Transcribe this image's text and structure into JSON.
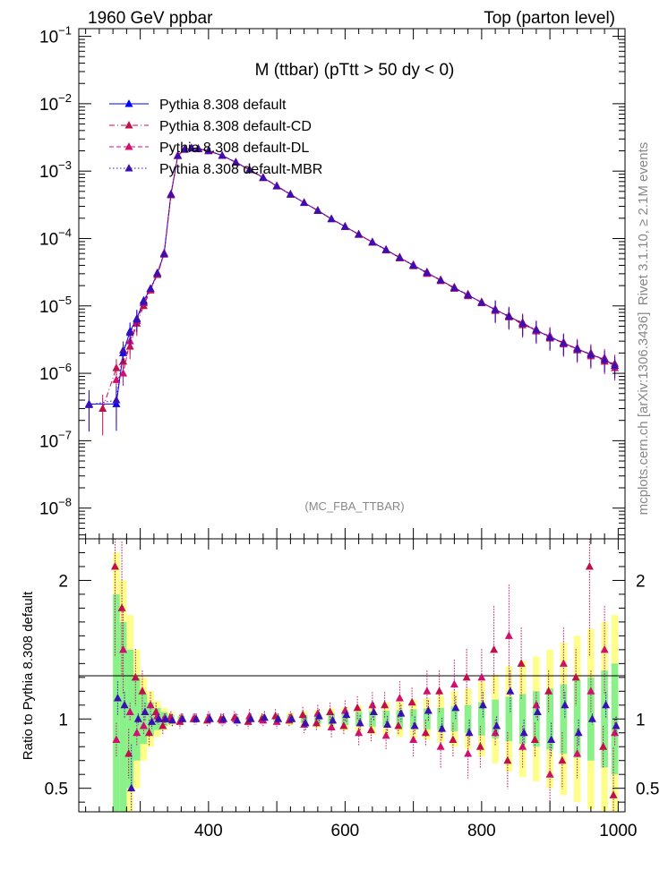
{
  "header": {
    "left": "1960 GeV ppbar",
    "right": "Top (parton level)"
  },
  "side": {
    "right_top": "Rivet 3.1.10, ≥ 2.1M events",
    "right_bottom": "mcplots.cern.ch [arXiv:1306.3436]"
  },
  "chart_data": {
    "type": "scatter",
    "title": "M (ttbar) (pTtt > 50 dy < 0)",
    "analysis_tag": "(MC_FBA_TTBAR)",
    "xlabel": "",
    "ylabel_ratio": "Ratio to Pythia 8.308 default",
    "xlim": [
      210,
      1010
    ],
    "ylim_main": [
      3.5e-09,
      0.13
    ],
    "y_scale_main": "log",
    "ylim_ratio": [
      0.33,
      2.3
    ],
    "x_ticks": [
      "400",
      "600",
      "800",
      "1000"
    ],
    "y_ticks_main": [
      "10^-8",
      "10^-7",
      "10^-6",
      "10^-5",
      "10^-4",
      "10^-3",
      "10^-2",
      "10^-1"
    ],
    "y_ticks_ratio": [
      "0.5",
      "1",
      "2"
    ],
    "legend_position": "top-left",
    "series": [
      {
        "name": "Pythia 8.308 default",
        "color": "#0000ff",
        "style": "solid",
        "x": [
          225,
          265,
          275,
          285,
          295,
          305,
          315,
          325,
          335,
          345,
          355,
          365,
          375,
          385,
          400,
          420,
          440,
          460,
          480,
          500,
          520,
          540,
          560,
          580,
          600,
          620,
          640,
          660,
          680,
          700,
          720,
          740,
          760,
          780,
          800,
          820,
          840,
          860,
          880,
          900,
          920,
          940,
          960,
          980,
          995
        ],
        "y": [
          3.5e-07,
          3.5e-07,
          2e-06,
          4.2e-06,
          6.5e-06,
          1.2e-05,
          1.8e-05,
          3e-05,
          6e-05,
          0.00045,
          0.0017,
          0.0021,
          0.0022,
          0.00215,
          0.002,
          0.0017,
          0.00135,
          0.00105,
          0.0008,
          0.0006,
          0.00045,
          0.00034,
          0.00026,
          0.000195,
          0.00015,
          0.000115,
          8.8e-05,
          6.8e-05,
          5.2e-05,
          4e-05,
          3.1e-05,
          2.4e-05,
          1.85e-05,
          1.45e-05,
          1.12e-05,
          8.8e-06,
          7e-06,
          5.5e-06,
          4.3e-06,
          3.5e-06,
          2.8e-06,
          2.3e-06,
          1.9e-06,
          1.6e-06,
          1.3e-06
        ]
      },
      {
        "name": "Pythia 8.308 default-CD",
        "color": "#c0104a",
        "style": "dashdot",
        "x": [
          245,
          265,
          275,
          285,
          295,
          305,
          315,
          325,
          335,
          345,
          355,
          365,
          375,
          385,
          400,
          420,
          440,
          460,
          480,
          500,
          520,
          540,
          560,
          580,
          600,
          620,
          640,
          660,
          680,
          700,
          720,
          740,
          760,
          780,
          800,
          820,
          840,
          860,
          880,
          900,
          920,
          940,
          960,
          980,
          995
        ],
        "y": [
          3e-07,
          1.2e-06,
          1.5e-06,
          2.5e-06,
          5.5e-06,
          1e-05,
          1.7e-05,
          2.9e-05,
          5.8e-05,
          0.00044,
          0.00168,
          0.00208,
          0.00218,
          0.00212,
          0.00198,
          0.00169,
          0.00134,
          0.00104,
          0.00079,
          0.000595,
          0.00045,
          0.000338,
          0.000258,
          0.000194,
          0.000149,
          0.000116,
          8.7e-05,
          6.7e-05,
          5.3e-05,
          3.9e-05,
          3.2e-05,
          2.35e-05,
          1.9e-05,
          1.4e-05,
          1.15e-05,
          8.5e-06,
          7.2e-06,
          5.2e-06,
          4.5e-06,
          3.3e-06,
          2.9e-06,
          2.2e-06,
          2e-06,
          1.5e-06,
          1.4e-06
        ]
      },
      {
        "name": "Pythia 8.308 default-DL",
        "color": "#d01070",
        "style": "dashed",
        "x": [
          265,
          275,
          285,
          295,
          305,
          315,
          325,
          335,
          345,
          355,
          365,
          375,
          385,
          400,
          420,
          440,
          460,
          480,
          500,
          520,
          540,
          560,
          580,
          600,
          620,
          640,
          660,
          680,
          700,
          720,
          740,
          760,
          780,
          800,
          820,
          840,
          860,
          880,
          900,
          920,
          940,
          960,
          980,
          995
        ],
        "y": [
          8e-07,
          1e-06,
          3e-06,
          6e-06,
          1.1e-05,
          1.75e-05,
          3.1e-05,
          6.1e-05,
          0.00046,
          0.00172,
          0.00212,
          0.00221,
          0.00216,
          0.00202,
          0.00171,
          0.00136,
          0.00106,
          0.00081,
          0.000605,
          0.000455,
          0.000342,
          0.000262,
          0.000196,
          0.000152,
          0.000114,
          8.9e-05,
          6.9e-05,
          5.1e-05,
          4.1e-05,
          3e-05,
          2.45e-05,
          1.8e-05,
          1.5e-05,
          1.1e-05,
          9e-06,
          6.8e-06,
          5.7e-06,
          4.2e-06,
          3.6e-06,
          2.7e-06,
          2.4e-06,
          1.8e-06,
          1.7e-06,
          1.2e-06
        ]
      },
      {
        "name": "Pythia 8.308 default-MBR",
        "color": "#3a10b0",
        "style": "dotted",
        "x": [
          225,
          265,
          275,
          285,
          295,
          305,
          315,
          325,
          335,
          345,
          355,
          365,
          375,
          385,
          400,
          420,
          440,
          460,
          480,
          500,
          520,
          540,
          560,
          580,
          600,
          620,
          640,
          660,
          680,
          700,
          720,
          740,
          760,
          780,
          800,
          820,
          840,
          860,
          880,
          900,
          920,
          940,
          960,
          980,
          995
        ],
        "y": [
          3.4e-07,
          4e-07,
          2.2e-06,
          4e-06,
          6.3e-06,
          1.15e-05,
          1.8e-05,
          3.05e-05,
          5.9e-05,
          0.00045,
          0.00169,
          0.0021,
          0.00219,
          0.00214,
          0.00201,
          0.0017,
          0.00135,
          0.00105,
          0.0008,
          0.0006,
          0.000452,
          0.00034,
          0.00026,
          0.000195,
          0.00015,
          0.000115,
          8.8e-05,
          6.8e-05,
          5.2e-05,
          4e-05,
          3.1e-05,
          2.4e-05,
          1.85e-05,
          1.45e-05,
          1.12e-05,
          8.8e-06,
          7e-06,
          5.5e-06,
          4.4e-06,
          3.4e-06,
          2.8e-06,
          2.3e-06,
          1.9e-06,
          1.6e-06,
          1.3e-06
        ]
      }
    ],
    "ratio_series": [
      {
        "name": "Pythia 8.308 default-CD",
        "color": "#c0104a",
        "x": [
          265,
          275,
          285,
          295,
          305,
          315,
          325,
          335,
          345,
          360,
          380,
          400,
          420,
          440,
          460,
          480,
          500,
          520,
          540,
          560,
          580,
          600,
          620,
          640,
          660,
          680,
          700,
          720,
          740,
          760,
          780,
          800,
          820,
          840,
          860,
          880,
          900,
          920,
          940,
          960,
          980,
          995
        ],
        "y": [
          2.1,
          1.8,
          0.75,
          1.3,
          1.2,
          0.9,
          1.05,
          0.95,
          1.0,
          0.98,
          1.0,
          0.99,
          1.0,
          1.01,
          0.98,
          1.0,
          1.02,
          0.99,
          1.03,
          0.97,
          1.05,
          0.95,
          1.08,
          0.92,
          1.1,
          0.95,
          1.12,
          0.9,
          1.2,
          0.85,
          1.3,
          0.8,
          1.5,
          0.7,
          1.4,
          0.85,
          1.2,
          0.7,
          1.3,
          2.1,
          0.8,
          0.45
        ]
      },
      {
        "name": "Pythia 8.308 default-DL",
        "color": "#d01070",
        "x": [
          265,
          275,
          285,
          295,
          305,
          315,
          325,
          335,
          345,
          360,
          380,
          400,
          420,
          440,
          460,
          480,
          500,
          520,
          540,
          560,
          580,
          600,
          620,
          640,
          660,
          680,
          700,
          720,
          740,
          760,
          780,
          800,
          820,
          840,
          860,
          880,
          900,
          920,
          940,
          960,
          980,
          995
        ],
        "y": [
          0.85,
          1.5,
          1.05,
          0.9,
          0.95,
          1.1,
          1.02,
          1.0,
          1.01,
          1.0,
          1.0,
          1.01,
          0.99,
          1.0,
          1.02,
          0.99,
          0.98,
          1.01,
          0.96,
          1.04,
          0.94,
          1.06,
          0.9,
          1.1,
          0.88,
          1.15,
          0.85,
          1.2,
          0.8,
          1.25,
          0.75,
          1.3,
          0.9,
          1.6,
          0.8,
          1.1,
          0.6,
          1.4,
          0.75,
          1.2,
          1.5,
          0.9
        ]
      },
      {
        "name": "Pythia 8.308 default-MBR",
        "color": "#3a10b0",
        "x": [
          265,
          275,
          285,
          295,
          305,
          315,
          325,
          335,
          345,
          360,
          380,
          400,
          420,
          440,
          460,
          480,
          500,
          520,
          540,
          560,
          580,
          600,
          620,
          640,
          660,
          680,
          700,
          720,
          740,
          760,
          780,
          800,
          820,
          840,
          860,
          880,
          900,
          920,
          940,
          960,
          980,
          995
        ],
        "y": [
          1.15,
          1.1,
          0.5,
          1.0,
          1.05,
          0.98,
          1.0,
          1.0,
          0.99,
          1.0,
          1.0,
          1.0,
          1.0,
          0.99,
          1.0,
          1.01,
          1.0,
          1.0,
          0.97,
          1.02,
          0.99,
          1.03,
          0.97,
          1.05,
          0.96,
          1.04,
          0.95,
          1.06,
          0.93,
          1.08,
          0.9,
          1.1,
          0.95,
          1.2,
          0.9,
          1.05,
          0.85,
          1.1,
          0.9,
          1.0,
          1.1,
          0.95
        ]
      }
    ],
    "bands": {
      "x": [
        265,
        275,
        285,
        295,
        305,
        315,
        325,
        335,
        345,
        360,
        380,
        400,
        420,
        440,
        460,
        480,
        500,
        520,
        540,
        560,
        580,
        600,
        620,
        640,
        660,
        680,
        700,
        720,
        740,
        760,
        780,
        800,
        820,
        840,
        860,
        880,
        900,
        920,
        940,
        960,
        980,
        995
      ],
      "green_halfwidth": [
        0.9,
        0.7,
        0.5,
        0.3,
        0.18,
        0.12,
        0.08,
        0.05,
        0.03,
        0.02,
        0.015,
        0.012,
        0.012,
        0.013,
        0.015,
        0.018,
        0.02,
        0.025,
        0.03,
        0.035,
        0.04,
        0.045,
        0.05,
        0.055,
        0.06,
        0.065,
        0.07,
        0.075,
        0.08,
        0.09,
        0.1,
        0.12,
        0.14,
        0.16,
        0.18,
        0.2,
        0.22,
        0.25,
        0.28,
        0.3,
        0.35,
        0.4
      ],
      "yellow_halfwidth": [
        1.2,
        1.0,
        0.75,
        0.5,
        0.3,
        0.2,
        0.13,
        0.08,
        0.05,
        0.03,
        0.025,
        0.02,
        0.02,
        0.022,
        0.025,
        0.03,
        0.035,
        0.045,
        0.055,
        0.065,
        0.075,
        0.085,
        0.095,
        0.11,
        0.12,
        0.13,
        0.14,
        0.15,
        0.17,
        0.2,
        0.22,
        0.27,
        0.32,
        0.38,
        0.42,
        0.45,
        0.5,
        0.55,
        0.6,
        0.65,
        0.7,
        0.75
      ]
    }
  }
}
